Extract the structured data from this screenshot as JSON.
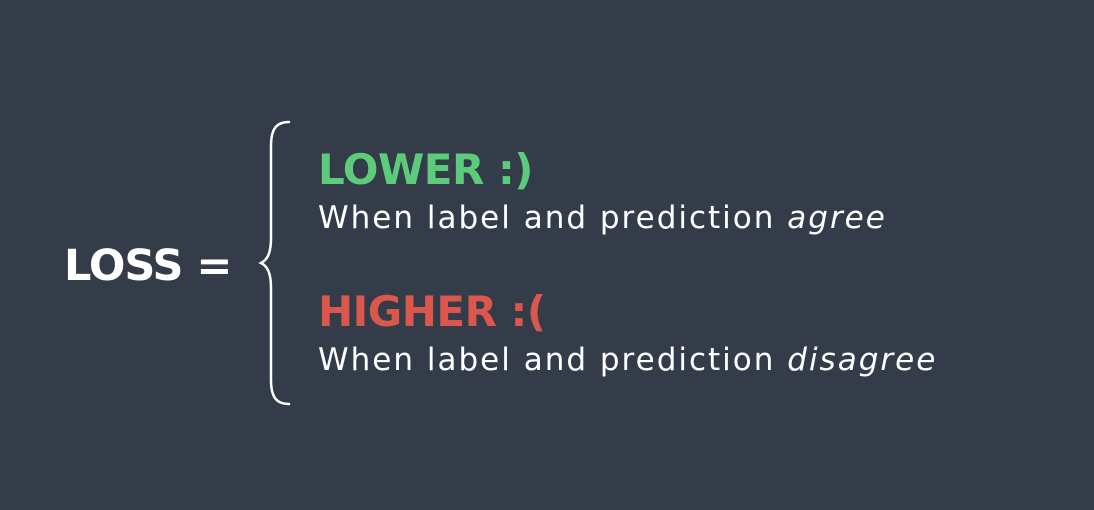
{
  "equation": {
    "left_side": "LOSS ="
  },
  "cases": [
    {
      "title": "LOWER :)",
      "color": "#5ccb7c",
      "description_prefix": "When label and prediction ",
      "description_emphasis": "agree"
    },
    {
      "title": "HIGHER :(",
      "color": "#d9574c",
      "description_prefix": "When label and prediction ",
      "description_emphasis": "disagree"
    }
  ],
  "colors": {
    "background": "#333c48",
    "text": "#ffffff"
  }
}
